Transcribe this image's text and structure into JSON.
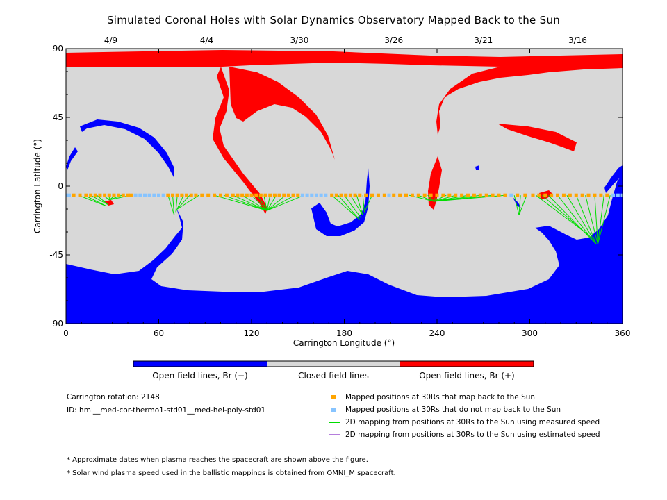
{
  "chart_data": {
    "type": "scatter",
    "title": "Simulated Coronal Holes with Solar Dynamics Observatory Mapped Back to the Sun",
    "xlabel": "Carrington Longitude (°)",
    "ylabel": "Carrington Latitude (°)",
    "xlim": [
      0,
      360
    ],
    "ylim": [
      -90,
      90
    ],
    "x_ticks": [
      "0",
      "60",
      "120",
      "180",
      "240",
      "300",
      "360"
    ],
    "y_ticks": [
      "90",
      "45",
      "0",
      "-45",
      "-90"
    ],
    "top_axis": {
      "labels": [
        "4/9",
        "4/4",
        "3/30",
        "3/26",
        "3/21",
        "3/16"
      ],
      "longitudes": [
        29,
        91,
        151,
        212,
        270,
        331
      ]
    },
    "colors": {
      "open_negative": "#0000ff",
      "closed": "#d8d8d8",
      "open_positive": "#ff0000",
      "mapped": "#ffa500",
      "not_mapped": "#87c4ff",
      "measured_speed": "#00dd00",
      "estimated_speed": "#b57edc"
    },
    "orbit_latitude": -6,
    "mapped_longitudes": [
      5,
      9,
      13,
      16,
      19,
      22,
      25,
      28,
      31,
      34,
      37,
      40,
      42,
      66,
      69,
      72,
      75,
      78,
      81,
      84,
      88,
      92,
      96,
      100,
      104,
      108,
      111,
      114,
      117,
      120,
      123,
      126,
      129,
      132,
      135,
      138,
      141,
      144,
      147,
      150,
      172,
      175,
      178,
      181,
      184,
      187,
      190,
      194,
      198,
      202,
      206,
      212,
      216,
      220,
      224,
      228,
      232,
      236,
      240,
      244,
      248,
      252,
      256,
      260,
      264,
      268,
      272,
      276,
      280,
      284,
      292,
      297,
      302,
      306,
      310,
      314,
      318,
      322,
      326,
      330,
      334,
      338,
      342,
      346,
      350
    ],
    "unmapped_longitudes": [
      0,
      2,
      45,
      48,
      51,
      54,
      57,
      60,
      63,
      153,
      156,
      159,
      162,
      165,
      168,
      209,
      288,
      354,
      357,
      360
    ],
    "mapping_lines": [
      [
        8,
        26
      ],
      [
        12,
        26
      ],
      [
        16,
        27
      ],
      [
        20,
        27
      ],
      [
        24,
        28
      ],
      [
        28,
        28
      ],
      [
        32,
        28
      ],
      [
        36,
        28
      ],
      [
        42,
        28
      ],
      [
        66,
        70
      ],
      [
        69,
        70
      ],
      [
        72,
        71
      ],
      [
        76,
        71
      ],
      [
        80,
        72
      ],
      [
        86,
        72
      ],
      [
        96,
        130
      ],
      [
        102,
        130
      ],
      [
        108,
        130
      ],
      [
        114,
        130
      ],
      [
        120,
        130
      ],
      [
        124,
        130
      ],
      [
        128,
        130
      ],
      [
        132,
        130
      ],
      [
        136,
        130
      ],
      [
        142,
        130
      ],
      [
        148,
        130
      ],
      [
        154,
        130
      ],
      [
        172,
        190
      ],
      [
        176,
        190
      ],
      [
        180,
        191
      ],
      [
        184,
        192
      ],
      [
        188,
        192
      ],
      [
        192,
        193
      ],
      [
        198,
        193
      ],
      [
        222,
        238
      ],
      [
        228,
        238
      ],
      [
        234,
        238
      ],
      [
        240,
        238
      ],
      [
        246,
        238
      ],
      [
        252,
        238
      ],
      [
        260,
        238
      ],
      [
        268,
        238
      ],
      [
        276,
        238
      ],
      [
        284,
        238
      ],
      [
        290,
        293
      ],
      [
        294,
        293
      ],
      [
        298,
        293
      ],
      [
        304,
        338
      ],
      [
        308,
        340
      ],
      [
        312,
        341
      ],
      [
        318,
        342
      ],
      [
        324,
        343
      ],
      [
        330,
        343
      ],
      [
        336,
        344
      ],
      [
        342,
        344
      ],
      [
        348,
        344
      ],
      [
        352,
        344
      ]
    ]
  },
  "colorbar": {
    "left_label": "Open field lines, Br (−)",
    "center_label": "Closed field lines",
    "right_label": "Open field lines, Br (+)"
  },
  "info": {
    "rotation": "Carrington rotation: 2148",
    "id": "ID: hmi__med-cor-thermo1-std01__med-hel-poly-std01"
  },
  "legend": {
    "mapped": "Mapped positions at 30Rs that map back to the Sun",
    "not_mapped": "Mapped positions at 30Rs that do not map back to the Sun",
    "measured": "2D mapping from positions at 30Rs to the Sun using measured speed",
    "estimated": "2D mapping from positions at 30Rs to the Sun using estimated speed"
  },
  "notes": {
    "note1": "* Approximate dates when plasma reaches the spacecraft are shown above the figure.",
    "note2": "* Solar wind plasma speed used in the ballistic mappings is obtained from OMNI_M spacecraft."
  }
}
